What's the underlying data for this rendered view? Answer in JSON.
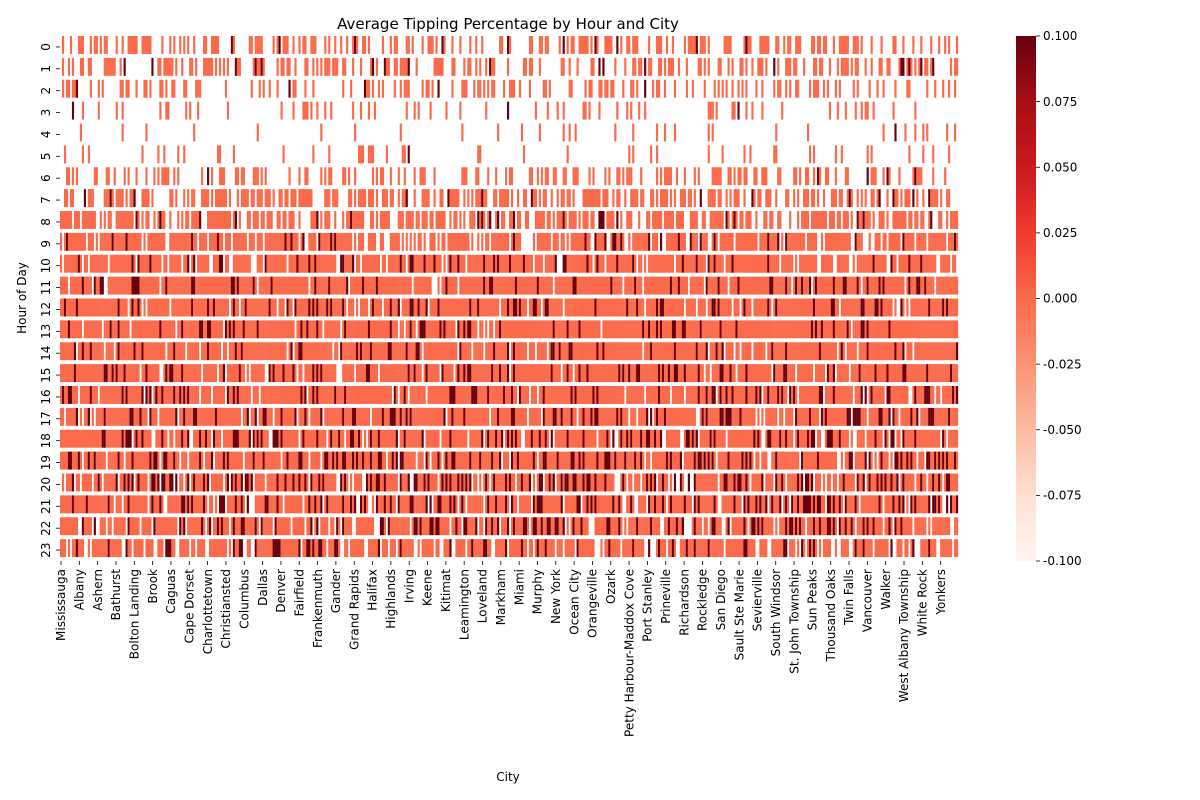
{
  "chart_data": {
    "type": "heatmap",
    "title": "Average Tipping Percentage by Hour and City",
    "xlabel": "City",
    "ylabel": "Hour of Day",
    "rows": [
      "0",
      "1",
      "2",
      "3",
      "4",
      "5",
      "6",
      "7",
      "8",
      "9",
      "10",
      "11",
      "12",
      "13",
      "14",
      "15",
      "16",
      "17",
      "18",
      "19",
      "20",
      "21",
      "22",
      "23"
    ],
    "x_tick_labels": [
      "Mississauga",
      "Albany",
      "Ashern",
      "Bathurst",
      "Bolton Landing",
      "Brook",
      "Caguas",
      "Cape Dorset",
      "Charlottetown",
      "Christiansted",
      "Columbus",
      "Dallas",
      "Denver",
      "Fairfield",
      "Frankenmuth",
      "Gander",
      "Grand Rapids",
      "Halifax",
      "Highlands",
      "Irving",
      "Keene",
      "Kitimat",
      "Leamington",
      "Loveland",
      "Markham",
      "Miami",
      "Murphy",
      "New York",
      "Ocean City",
      "Orangeville",
      "Ozark",
      "Petty Harbour-Maddox Cove",
      "Port Stanley",
      "Prineville",
      "Richardson",
      "Rockledge",
      "San Diego",
      "Sault Ste Marie",
      "Sevierville",
      "South Windsor",
      "St. John Township",
      "Sun  Peaks",
      "Thousand Oaks",
      "Twin Falls",
      "Vancouver",
      "Walker",
      "West Albany Township",
      "White Rock",
      "Yonkers"
    ],
    "n_columns": 452,
    "colorbar": {
      "min": -0.1,
      "max": 0.1,
      "ticks": [
        "0.100",
        "0.075",
        "0.050",
        "0.025",
        "0.000",
        "-0.025",
        "-0.050",
        "-0.075",
        "-0.100"
      ]
    },
    "colormap": [
      "#fff5f0",
      "#fee0d2",
      "#fcbba1",
      "#fc9272",
      "#fb6a4a",
      "#ef3b2c",
      "#cb181d",
      "#a50f15",
      "#67000d"
    ],
    "value_levels": [
      0.0,
      0.1
    ],
    "row_fill_rate": [
      0.42,
      0.4,
      0.3,
      0.12,
      0.08,
      0.1,
      0.3,
      0.55,
      0.65,
      0.78,
      0.85,
      0.93,
      0.94,
      0.94,
      0.94,
      0.94,
      0.93,
      0.92,
      0.9,
      0.88,
      0.86,
      0.84,
      0.82,
      0.8
    ],
    "row_dark_rate": [
      0.05,
      0.05,
      0.04,
      0.03,
      0.03,
      0.03,
      0.04,
      0.05,
      0.07,
      0.08,
      0.1,
      0.12,
      0.13,
      0.13,
      0.14,
      0.14,
      0.15,
      0.17,
      0.2,
      0.24,
      0.27,
      0.25,
      0.22,
      0.2
    ]
  }
}
